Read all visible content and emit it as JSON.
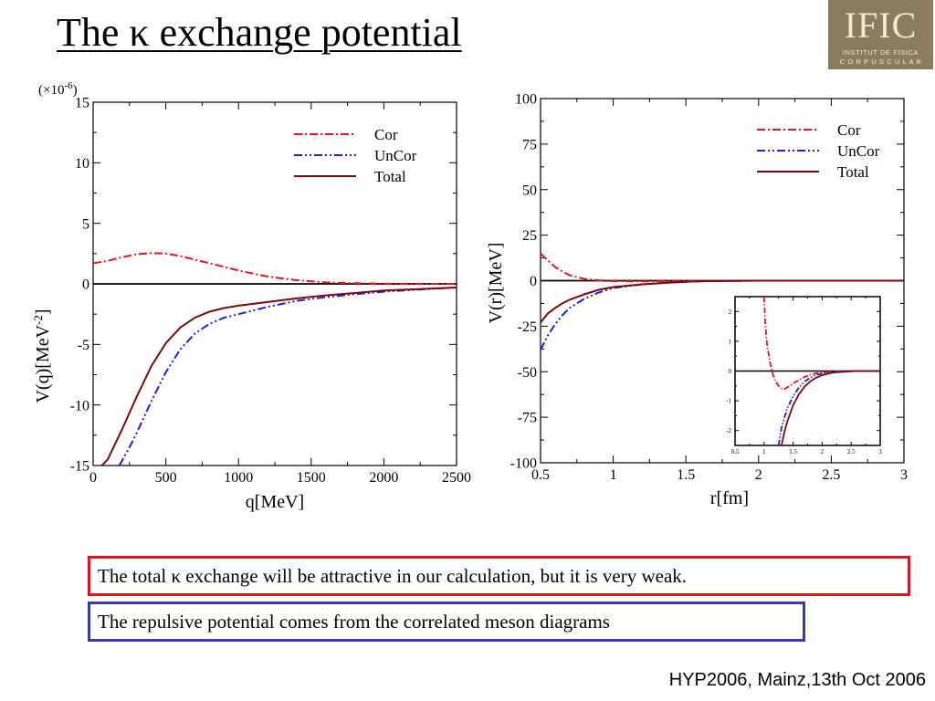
{
  "slide": {
    "title": "The κ exchange potential",
    "logo": {
      "text": "IFIC",
      "subtitle_line1": "INSTITUT DE FISICA",
      "subtitle_line2": "C O R P U S C U L A R"
    },
    "boxes": [
      {
        "text": "The total κ exchange will be attractive in our calculation, but it is very weak.",
        "border_color": "#e0141e"
      },
      {
        "text": "The repulsive potential comes from the correlated meson diagrams",
        "border_color": "#3a3ab0"
      }
    ],
    "footer": "HYP2006, Mainz,13th Oct 2006"
  },
  "chart_data": [
    {
      "type": "line",
      "xlabel": "q[MeV]",
      "ylabel": "V(q)[MeV",
      "ylabel_sup": "-2",
      "ylabel_end": "]",
      "scale_note": "(×10",
      "scale_note_sup": "-6",
      "scale_note_end": ")",
      "xlim": [
        0,
        2500
      ],
      "ylim": [
        -15,
        15
      ],
      "xticks": [
        "0",
        "500",
        "1000",
        "1500",
        "2000",
        "2500"
      ],
      "yticks": [
        "-15",
        "-10",
        "-5",
        "0",
        "5",
        "10",
        "15"
      ],
      "legend_position": "top-right",
      "series": [
        {
          "name": "Cor",
          "color": "#e8141e",
          "dash": "dashdot",
          "x": [
            0,
            100,
            200,
            300,
            400,
            500,
            600,
            700,
            800,
            900,
            1000,
            1200,
            1400,
            1600,
            1800,
            2000,
            2200,
            2500
          ],
          "y": [
            1.7,
            1.9,
            2.2,
            2.45,
            2.55,
            2.5,
            2.3,
            2.0,
            1.7,
            1.4,
            1.1,
            0.6,
            0.3,
            0.12,
            0.05,
            0.02,
            0.01,
            0.0
          ]
        },
        {
          "name": "UnCor",
          "color": "#1e1ee0",
          "dash": "dashdotdot",
          "x": [
            180,
            250,
            300,
            400,
            500,
            600,
            700,
            800,
            900,
            1000,
            1200,
            1400,
            1600,
            1800,
            2000,
            2200,
            2500
          ],
          "y": [
            -15.0,
            -13.5,
            -12.3,
            -9.7,
            -7.3,
            -5.4,
            -4.1,
            -3.3,
            -2.8,
            -2.5,
            -1.9,
            -1.4,
            -1.1,
            -0.85,
            -0.65,
            -0.5,
            -0.3
          ]
        },
        {
          "name": "Total",
          "color": "#7a0a0a",
          "dash": "solid",
          "x": [
            60,
            100,
            200,
            300,
            400,
            500,
            600,
            700,
            800,
            900,
            1000,
            1200,
            1400,
            1600,
            1800,
            2000,
            2200,
            2500
          ],
          "y": [
            -15.0,
            -14.5,
            -12.0,
            -9.3,
            -6.8,
            -4.9,
            -3.6,
            -2.8,
            -2.3,
            -2.0,
            -1.8,
            -1.5,
            -1.2,
            -0.95,
            -0.75,
            -0.55,
            -0.45,
            -0.3
          ]
        }
      ]
    },
    {
      "type": "line",
      "xlabel": "r[fm]",
      "ylabel": "V(r)[MeV]",
      "xlim": [
        0.5,
        3
      ],
      "ylim": [
        -100,
        100
      ],
      "xticks": [
        "0.5",
        "1",
        "1.5",
        "2",
        "2.5",
        "3"
      ],
      "yticks": [
        "-100",
        "-75",
        "-50",
        "-25",
        "0",
        "25",
        "50",
        "75",
        "100"
      ],
      "legend_position": "top-right",
      "series": [
        {
          "name": "Cor",
          "color": "#e8141e",
          "dash": "dashdot",
          "x": [
            0.5,
            0.55,
            0.6,
            0.65,
            0.7,
            0.8,
            0.9,
            1.0,
            1.2,
            1.5,
            2.0,
            3.0
          ],
          "y": [
            15,
            11,
            7.5,
            5,
            3,
            1,
            0.2,
            -0.3,
            -0.4,
            -0.2,
            0,
            0
          ]
        },
        {
          "name": "UnCor",
          "color": "#1e1ee0",
          "dash": "dashdotdot",
          "x": [
            0.5,
            0.55,
            0.6,
            0.65,
            0.7,
            0.8,
            0.9,
            1.0,
            1.2,
            1.4,
            1.6,
            2.0,
            3.0
          ],
          "y": [
            -38,
            -30,
            -24,
            -19,
            -15,
            -10,
            -6.5,
            -4,
            -2,
            -1,
            -0.3,
            0,
            0
          ]
        },
        {
          "name": "Total",
          "color": "#7a0a0a",
          "dash": "solid",
          "x": [
            0.5,
            0.55,
            0.6,
            0.65,
            0.7,
            0.8,
            0.9,
            1.0,
            1.2,
            1.4,
            1.6,
            2.0,
            3.0
          ],
          "y": [
            -23,
            -18,
            -15,
            -12.5,
            -10.5,
            -7.5,
            -5,
            -3.5,
            -2,
            -1,
            -0.3,
            0,
            0
          ]
        }
      ],
      "inset": {
        "xlim": [
          0.5,
          3
        ],
        "ylim": [
          -2.5,
          2.5
        ],
        "xticks": [
          "0.5",
          "1",
          "1.5",
          "2",
          "2.5",
          "3"
        ],
        "yticks": [
          "-2",
          "-1",
          "0",
          "1",
          "2"
        ],
        "series": [
          {
            "name": "Cor",
            "color": "#e8141e",
            "dash": "dashdot",
            "x": [
              1.0,
              1.02,
              1.05,
              1.1,
              1.15,
              1.2,
              1.25,
              1.3,
              1.35,
              1.4,
              1.5,
              1.6,
              1.7,
              1.8,
              1.9,
              2.0,
              2.2,
              2.5,
              3.0
            ],
            "y": [
              2.5,
              1.6,
              0.9,
              0.3,
              -0.1,
              -0.35,
              -0.5,
              -0.58,
              -0.6,
              -0.55,
              -0.42,
              -0.3,
              -0.2,
              -0.12,
              -0.07,
              -0.04,
              -0.02,
              0,
              0
            ]
          },
          {
            "name": "UnCor",
            "color": "#1e1ee0",
            "dash": "dashdotdot",
            "x": [
              1.25,
              1.3,
              1.4,
              1.5,
              1.6,
              1.7,
              1.8,
              1.9,
              2.0,
              2.1,
              2.2,
              2.4,
              2.6,
              3.0
            ],
            "y": [
              -2.5,
              -1.9,
              -1.25,
              -0.85,
              -0.55,
              -0.35,
              -0.22,
              -0.13,
              -0.08,
              -0.05,
              -0.03,
              -0.01,
              0,
              0
            ]
          },
          {
            "name": "Total",
            "color": "#7a0a0a",
            "dash": "solid",
            "x": [
              1.3,
              1.35,
              1.4,
              1.5,
              1.6,
              1.7,
              1.8,
              1.9,
              2.0,
              2.1,
              2.2,
              2.4,
              2.6,
              3.0
            ],
            "y": [
              -2.5,
              -2.05,
              -1.7,
              -1.15,
              -0.78,
              -0.52,
              -0.34,
              -0.22,
              -0.14,
              -0.09,
              -0.05,
              -0.02,
              0,
              0
            ]
          }
        ]
      }
    }
  ]
}
